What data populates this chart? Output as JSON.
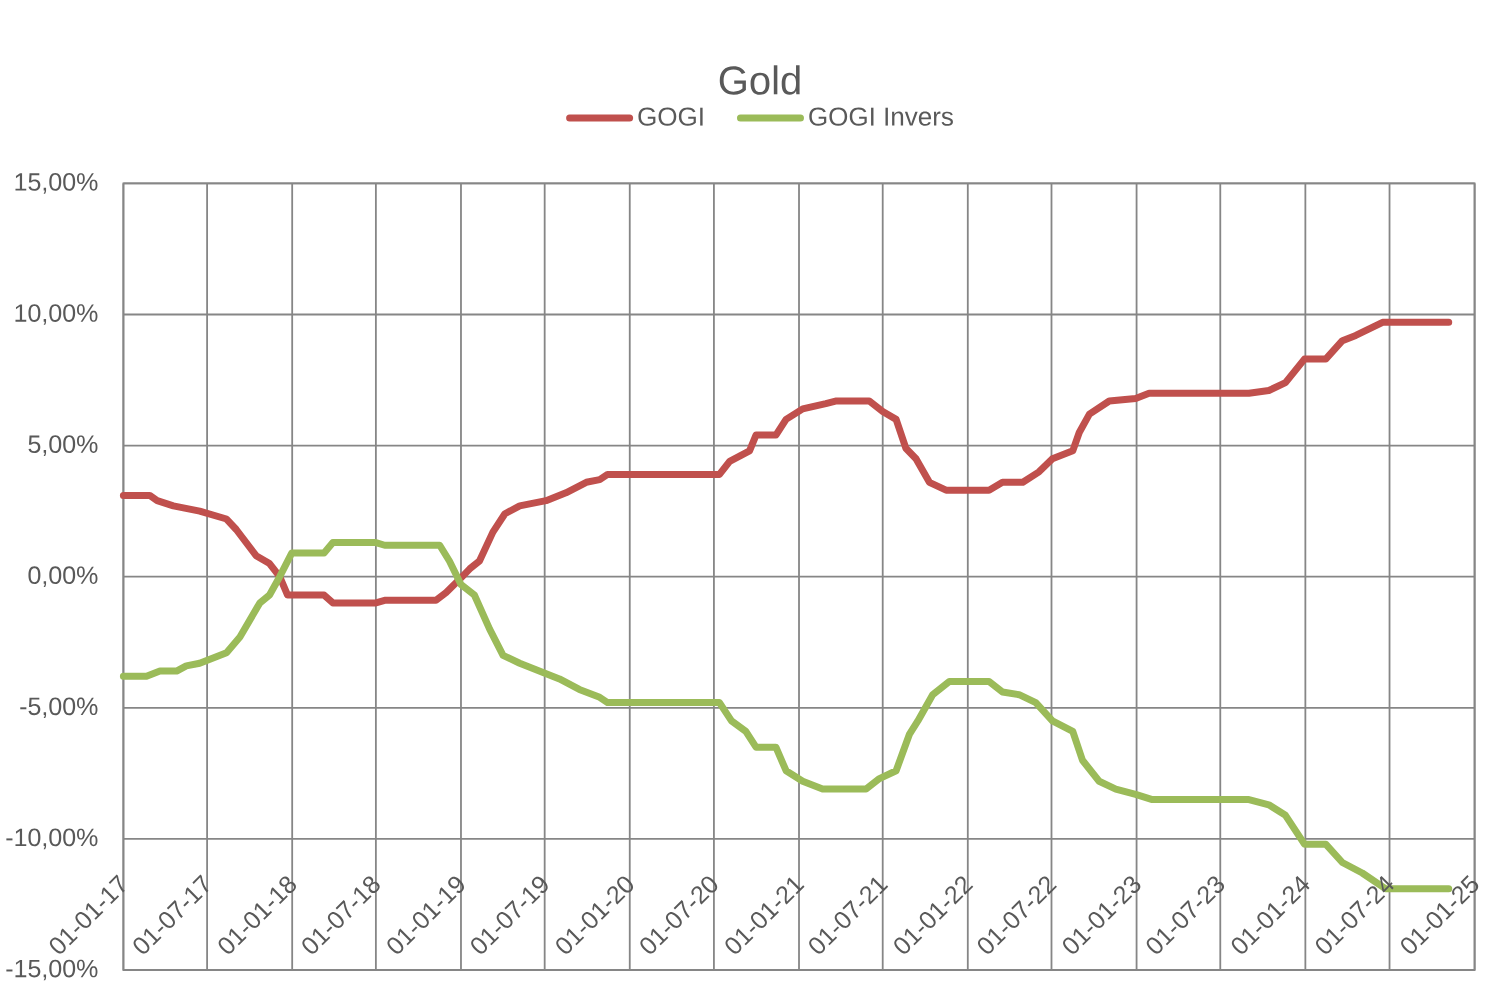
{
  "chart_data": {
    "type": "line",
    "title": "Gold",
    "xlim": [
      "2017-01-01",
      "2025-01-01"
    ],
    "xticks": [
      {
        "value": "2017-01-01",
        "label": "01-01-17"
      },
      {
        "value": "2017-07-01",
        "label": "01-07-17"
      },
      {
        "value": "2018-01-01",
        "label": "01-01-18"
      },
      {
        "value": "2018-07-01",
        "label": "01-07-18"
      },
      {
        "value": "2019-01-01",
        "label": "01-01-19"
      },
      {
        "value": "2019-07-01",
        "label": "01-07-19"
      },
      {
        "value": "2020-01-01",
        "label": "01-01-20"
      },
      {
        "value": "2020-07-01",
        "label": "01-07-20"
      },
      {
        "value": "2021-01-01",
        "label": "01-01-21"
      },
      {
        "value": "2021-07-01",
        "label": "01-07-21"
      },
      {
        "value": "2022-01-01",
        "label": "01-01-22"
      },
      {
        "value": "2022-07-01",
        "label": "01-07-22"
      },
      {
        "value": "2023-01-01",
        "label": "01-01-23"
      },
      {
        "value": "2023-07-01",
        "label": "01-07-23"
      },
      {
        "value": "2024-01-01",
        "label": "01-01-24"
      },
      {
        "value": "2024-07-01",
        "label": "01-07-24"
      },
      {
        "value": "2025-01-01",
        "label": "01-01-25"
      }
    ],
    "ylim": [
      -15,
      15
    ],
    "yticks": [
      {
        "value": -15,
        "label": "-15,00%"
      },
      {
        "value": -10,
        "label": "-10,00%"
      },
      {
        "value": -5,
        "label": "-5,00%"
      },
      {
        "value": 0,
        "label": "0,00%"
      },
      {
        "value": 5,
        "label": "5,00%"
      },
      {
        "value": 10,
        "label": "10,00%"
      },
      {
        "value": 15,
        "label": "15,00%"
      }
    ],
    "grid": true,
    "legend": "top",
    "line_style": "solid",
    "series": [
      {
        "name": "GOGI",
        "color": "#c0504d",
        "x": [
          "2017-01-01",
          "2017-02-27",
          "2017-03-15",
          "2017-04-19",
          "2017-06-15",
          "2017-08-12",
          "2017-09-02",
          "2017-10-15",
          "2017-11-13",
          "2017-12-05",
          "2017-12-22",
          "2018-03-11",
          "2018-03-30",
          "2018-07-01",
          "2018-07-20",
          "2018-11-08",
          "2018-11-30",
          "2018-12-29",
          "2019-01-20",
          "2019-02-10",
          "2019-03-11",
          "2019-04-06",
          "2019-05-08",
          "2019-07-04",
          "2019-08-16",
          "2019-09-29",
          "2019-10-28",
          "2019-11-14",
          "2020-07-13",
          "2020-08-04",
          "2020-09-16",
          "2020-09-30",
          "2020-11-12",
          "2020-12-04",
          "2021-01-09",
          "2021-02-28",
          "2021-03-21",
          "2021-06-02",
          "2021-07-01",
          "2021-07-30",
          "2021-08-20",
          "2021-09-11",
          "2021-10-10",
          "2021-11-15",
          "2022-02-16",
          "2022-03-17",
          "2022-04-30",
          "2022-06-04",
          "2022-07-03",
          "2022-08-16",
          "2022-08-30",
          "2022-09-21",
          "2022-11-03",
          "2022-12-30",
          "2023-01-28",
          "2023-09-01",
          "2023-10-14",
          "2023-11-19",
          "2023-12-30",
          "2024-02-14",
          "2024-03-21",
          "2024-04-19",
          "2024-06-16",
          "2024-11-06"
        ],
        "values": [
          3.1,
          3.1,
          2.9,
          2.7,
          2.5,
          2.2,
          1.8,
          0.8,
          0.5,
          0.0,
          -0.7,
          -0.7,
          -1.0,
          -1.0,
          -0.9,
          -0.9,
          -0.6,
          -0.1,
          0.3,
          0.6,
          1.7,
          2.4,
          2.7,
          2.9,
          3.2,
          3.6,
          3.7,
          3.9,
          3.9,
          4.4,
          4.8,
          5.4,
          5.4,
          6.0,
          6.4,
          6.6,
          6.7,
          6.7,
          6.3,
          6.0,
          4.9,
          4.5,
          3.6,
          3.3,
          3.3,
          3.6,
          3.6,
          4.0,
          4.5,
          4.8,
          5.5,
          6.2,
          6.7,
          6.8,
          7.0,
          7.0,
          7.1,
          7.4,
          8.3,
          8.3,
          9.0,
          9.2,
          9.7,
          9.7
        ]
      },
      {
        "name": "GOGI Invers",
        "color": "#9bbb59",
        "x": [
          "2017-01-01",
          "2017-02-20",
          "2017-03-21",
          "2017-04-26",
          "2017-05-17",
          "2017-06-15",
          "2017-08-12",
          "2017-09-10",
          "2017-10-23",
          "2017-11-13",
          "2017-12-05",
          "2017-12-31",
          "2018-03-11",
          "2018-03-30",
          "2018-07-01",
          "2018-07-20",
          "2018-11-16",
          "2018-12-07",
          "2019-01-01",
          "2019-01-30",
          "2019-03-04",
          "2019-04-02",
          "2019-05-08",
          "2019-06-20",
          "2019-08-02",
          "2019-09-14",
          "2019-10-28",
          "2019-11-14",
          "2020-07-13",
          "2020-08-08",
          "2020-09-08",
          "2020-09-30",
          "2020-11-12",
          "2020-12-04",
          "2021-01-09",
          "2021-02-21",
          "2021-03-21",
          "2021-05-26",
          "2021-06-24",
          "2021-07-30",
          "2021-08-28",
          "2021-09-15",
          "2021-10-17",
          "2021-11-22",
          "2022-02-16",
          "2022-03-17",
          "2022-04-22",
          "2022-05-28",
          "2022-07-03",
          "2022-08-16",
          "2022-09-06",
          "2022-10-12",
          "2022-11-17",
          "2022-12-30",
          "2023-02-04",
          "2023-09-01",
          "2023-10-14",
          "2023-11-19",
          "2023-12-30",
          "2024-02-14",
          "2024-03-21",
          "2024-05-03",
          "2024-06-22",
          "2024-11-06"
        ],
        "values": [
          -3.8,
          -3.8,
          -3.6,
          -3.6,
          -3.4,
          -3.3,
          -2.9,
          -2.3,
          -1.0,
          -0.7,
          0.0,
          0.9,
          0.9,
          1.3,
          1.3,
          1.2,
          1.2,
          0.6,
          -0.3,
          -0.7,
          -2.0,
          -3.0,
          -3.3,
          -3.6,
          -3.9,
          -4.3,
          -4.6,
          -4.8,
          -4.8,
          -5.5,
          -5.9,
          -6.5,
          -6.5,
          -7.4,
          -7.8,
          -8.1,
          -8.1,
          -8.1,
          -7.7,
          -7.4,
          -6.0,
          -5.5,
          -4.5,
          -4.0,
          -4.0,
          -4.4,
          -4.5,
          -4.8,
          -5.5,
          -5.9,
          -7.0,
          -7.8,
          -8.1,
          -8.3,
          -8.5,
          -8.5,
          -8.7,
          -9.1,
          -10.2,
          -10.2,
          -10.9,
          -11.3,
          -11.9,
          -11.9
        ]
      }
    ]
  }
}
